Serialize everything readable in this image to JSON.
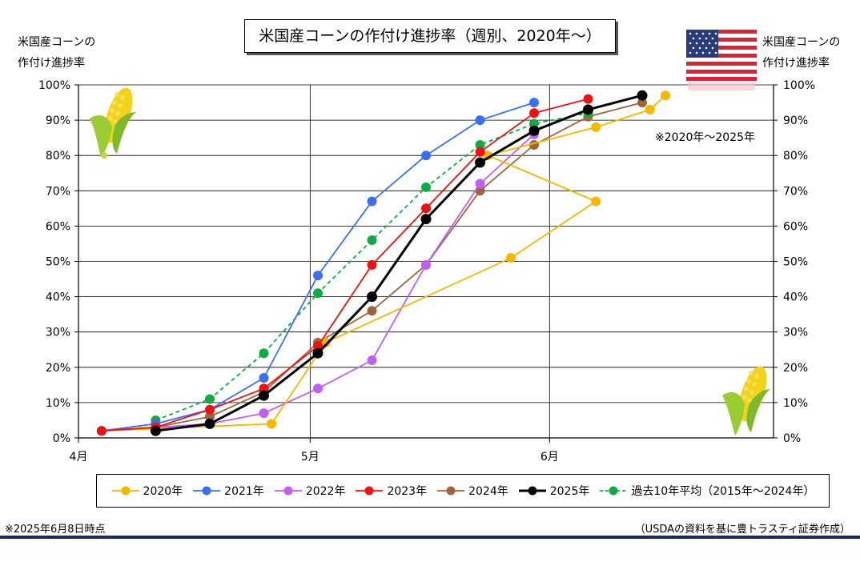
{
  "chart_data": {
    "type": "line",
    "title": "米国産コーンの作付け進捗率（週別、2020年～）",
    "ylabel_left": "米国産コーンの\n作付け進捗率",
    "ylabel_right": "米国産コーンの\n作付け進捗率",
    "ylim": [
      0,
      100
    ],
    "yticks": [
      "0%",
      "10%",
      "20%",
      "30%",
      "40%",
      "50%",
      "60%",
      "70%",
      "80%",
      "90%",
      "100%"
    ],
    "xlim": [
      "2025-04-01",
      "2025-06-30"
    ],
    "xticks": [
      {
        "date": "2025-04-01",
        "label": "4月"
      },
      {
        "date": "2025-05-01",
        "label": "5月"
      },
      {
        "date": "2025-06-01",
        "label": "6月"
      }
    ],
    "grid": "horizontal",
    "period_note": "※2020年～2025年",
    "series": [
      {
        "name": "2020年",
        "color": "#f5b800",
        "style": "solid",
        "points": [
          [
            "2025-04-04",
            2
          ],
          [
            "2025-04-26",
            4
          ],
          [
            "2025-05-03",
            27
          ],
          [
            "2025-05-27",
            51
          ],
          [
            "2025-06-07",
            67
          ],
          [
            "2025-05-24",
            80
          ],
          [
            "2025-06-07",
            88
          ],
          [
            "2025-06-14",
            93
          ],
          [
            "2025-06-16",
            97
          ]
        ]
      },
      {
        "name": "2021年",
        "color": "#3b6ff0",
        "style": "solid",
        "points": [
          [
            "2025-04-04",
            2
          ],
          [
            "2025-04-11",
            4
          ],
          [
            "2025-04-18",
            8
          ],
          [
            "2025-04-25",
            17
          ],
          [
            "2025-05-02",
            46
          ],
          [
            "2025-05-09",
            67
          ],
          [
            "2025-05-16",
            80
          ],
          [
            "2025-05-23",
            90
          ],
          [
            "2025-05-30",
            95
          ]
        ]
      },
      {
        "name": "2022年",
        "color": "#c060f0",
        "style": "solid",
        "points": [
          [
            "2025-04-04",
            2
          ],
          [
            "2025-04-11",
            3
          ],
          [
            "2025-04-18",
            4
          ],
          [
            "2025-04-25",
            7
          ],
          [
            "2025-05-02",
            14
          ],
          [
            "2025-05-09",
            22
          ],
          [
            "2025-05-16",
            49
          ],
          [
            "2025-05-23",
            72
          ],
          [
            "2025-05-30",
            86
          ]
        ]
      },
      {
        "name": "2023年",
        "color": "#ee1111",
        "style": "solid",
        "points": [
          [
            "2025-04-04",
            2
          ],
          [
            "2025-04-11",
            3
          ],
          [
            "2025-04-18",
            8
          ],
          [
            "2025-04-25",
            14
          ],
          [
            "2025-05-02",
            26
          ],
          [
            "2025-05-09",
            49
          ],
          [
            "2025-05-16",
            65
          ],
          [
            "2025-05-23",
            81
          ],
          [
            "2025-05-30",
            92
          ],
          [
            "2025-06-06",
            96
          ]
        ]
      },
      {
        "name": "2024年",
        "color": "#a0643c",
        "style": "solid",
        "points": [
          [
            "2025-04-04",
            2
          ],
          [
            "2025-04-11",
            3
          ],
          [
            "2025-04-18",
            6
          ],
          [
            "2025-04-25",
            13
          ],
          [
            "2025-05-02",
            27
          ],
          [
            "2025-05-09",
            36
          ],
          [
            "2025-05-16",
            49
          ],
          [
            "2025-05-23",
            70
          ],
          [
            "2025-05-30",
            83
          ],
          [
            "2025-06-06",
            91
          ],
          [
            "2025-06-13",
            95
          ]
        ]
      },
      {
        "name": "2025年",
        "color": "#000000",
        "style": "bold",
        "points": [
          [
            "2025-04-11",
            2
          ],
          [
            "2025-04-18",
            4
          ],
          [
            "2025-04-25",
            12
          ],
          [
            "2025-05-02",
            24
          ],
          [
            "2025-05-09",
            40
          ],
          [
            "2025-05-16",
            62
          ],
          [
            "2025-05-23",
            78
          ],
          [
            "2025-05-30",
            87
          ],
          [
            "2025-06-06",
            93
          ],
          [
            "2025-06-13",
            97
          ]
        ]
      },
      {
        "name": "過去10年平均（2015年～2024年）",
        "color": "#11aa44",
        "style": "dashed",
        "points": [
          [
            "2025-04-11",
            5
          ],
          [
            "2025-04-18",
            11
          ],
          [
            "2025-04-25",
            24
          ],
          [
            "2025-05-02",
            41
          ],
          [
            "2025-05-09",
            56
          ],
          [
            "2025-05-16",
            71
          ],
          [
            "2025-05-23",
            83
          ],
          [
            "2025-05-30",
            89
          ],
          [
            "2025-06-06",
            92
          ]
        ]
      }
    ]
  },
  "notes": {
    "as_of": "※2025年6月8日時点",
    "source": "（USDAの資料を基に豊トラスティ証券作成）"
  },
  "icons": {
    "flag": "us-flag-icon",
    "corn_left": "corn-icon",
    "corn_right": "corn-icon"
  }
}
